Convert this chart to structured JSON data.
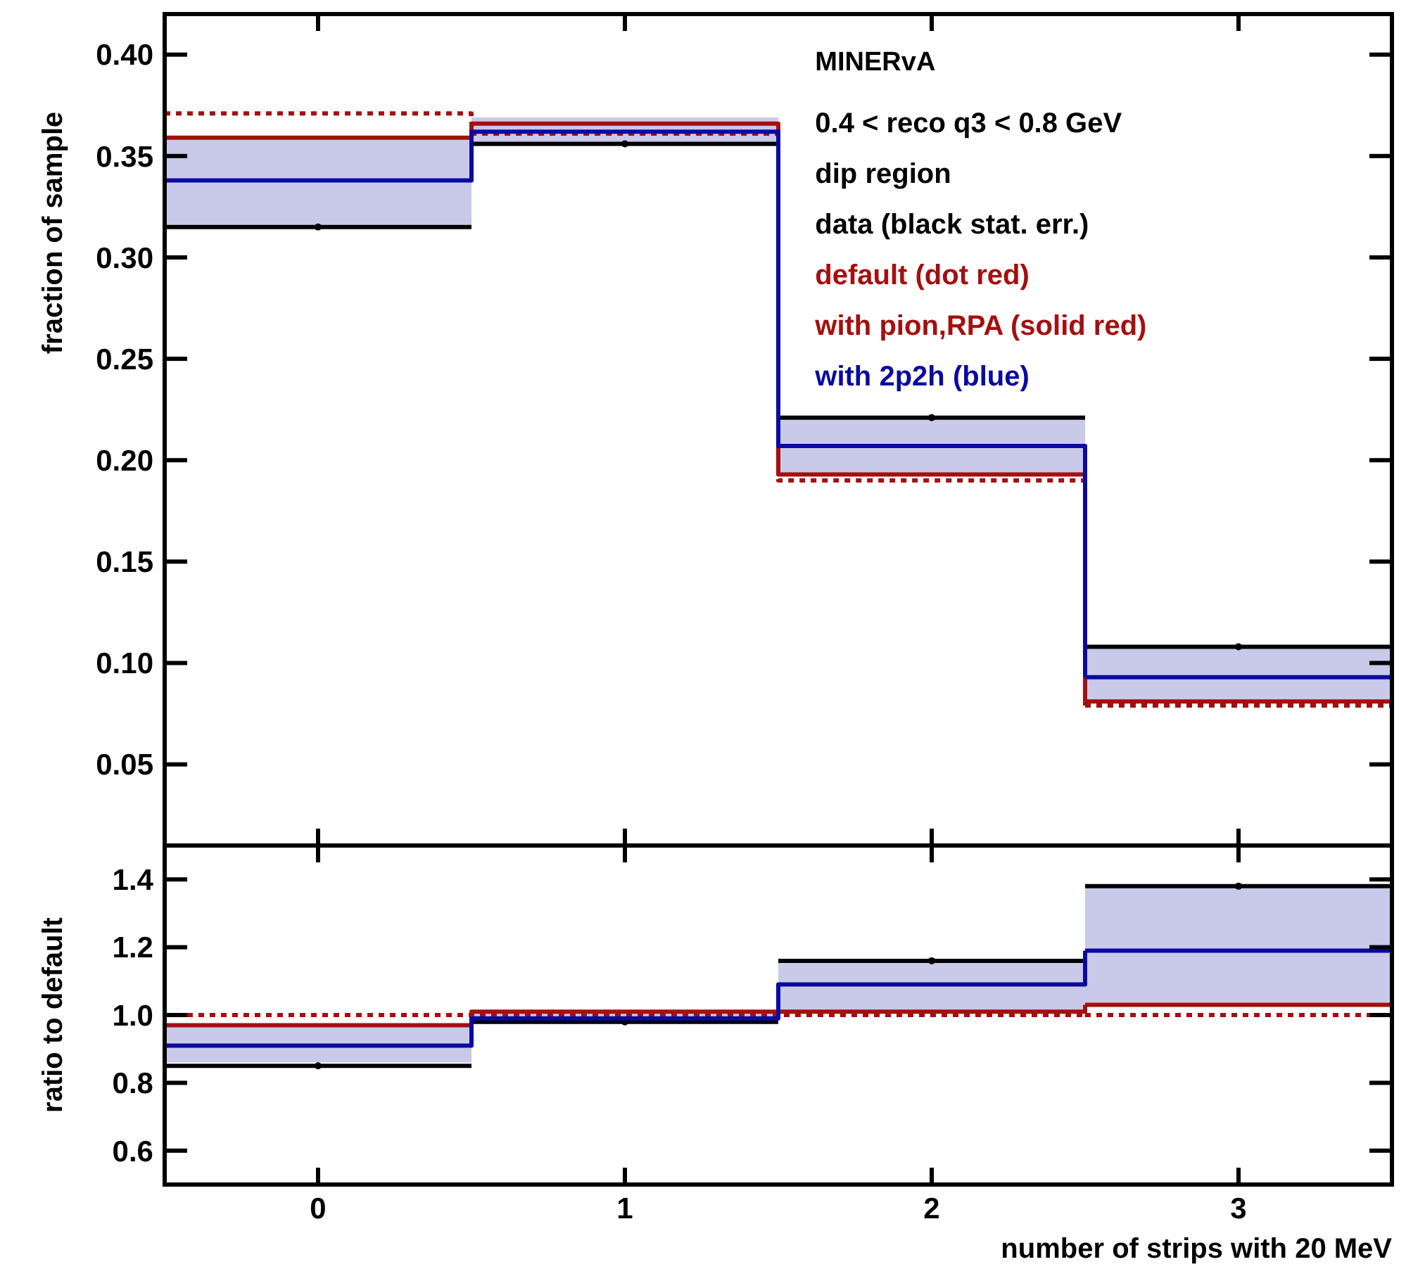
{
  "chart_data": [
    {
      "type": "step",
      "ylabel": "fraction of sample",
      "x": [
        -0.5,
        0.5,
        1.5,
        2.5
      ],
      "xlim": [
        -0.5,
        3.5
      ],
      "xticks": [
        0,
        1,
        2,
        3
      ],
      "ylim": [
        0.01,
        0.42
      ],
      "yticks": [
        0.05,
        {
          "value": 0.1,
          "label": "0.10"
        },
        0.15,
        {
          "value": 0.2,
          "label": "0.20"
        },
        0.25,
        {
          "value": 0.3,
          "label": "0.30"
        },
        0.35,
        {
          "value": 0.4,
          "label": "0.40"
        }
      ],
      "tick_labels": "y",
      "legend": "top right",
      "grid": false,
      "annotations": [
        "MINERvA",
        "0.4 < reco q3 < 0.8 GeV",
        "dip region"
      ],
      "series": [
        {
          "name": "data (black stat. err.)",
          "type": "scatter",
          "color": "#000000",
          "x": [
            0,
            1,
            2,
            3
          ],
          "values": [
            0.315,
            0.356,
            0.221,
            0.108
          ],
          "xerrors": [
            0.5,
            0.5,
            0.5,
            0.5
          ]
        },
        {
          "name": "default (dot red)",
          "color": "#a50f0f",
          "line_style": "dotted",
          "values": [
            0.371,
            0.361,
            0.19,
            0.079
          ]
        },
        {
          "name": "with pion,RPA (solid red)",
          "color": "#a50f0f",
          "line_style": "solid",
          "values": [
            0.359,
            0.366,
            0.193,
            0.081
          ]
        },
        {
          "name": "with 2p2h (blue)",
          "color": "#0a0aa0",
          "line_style": "solid",
          "values": [
            0.338,
            0.362,
            0.207,
            0.093
          ],
          "lower": [
            0.315,
            0.355,
            0.193,
            0.081
          ],
          "upper": [
            0.359,
            0.369,
            0.221,
            0.108
          ]
        }
      ]
    },
    {
      "type": "step",
      "ylabel": "ratio to default",
      "xlabel": "number of strips with 20 MeV",
      "x": [
        -0.5,
        0.5,
        1.5,
        2.5
      ],
      "xlim": [
        -0.5,
        3.5
      ],
      "xticks": [
        0,
        1,
        2,
        3
      ],
      "ylim": [
        0.5,
        1.5
      ],
      "yticks": [
        0.6,
        0.8,
        {
          "value": 1,
          "label": "1.0"
        },
        1.2,
        1.4
      ],
      "grid": false,
      "series": [
        {
          "type": "scatter",
          "color": "#000000",
          "x": [
            0,
            1,
            2,
            3
          ],
          "values": [
            0.85,
            0.98,
            1.16,
            1.38
          ],
          "xerrors": [
            0.5,
            0.5,
            0.5,
            0.5
          ]
        },
        {
          "color": "#a50f0f",
          "line_style": "dotted",
          "values": [
            1.0,
            1.0,
            1.0,
            1.0
          ]
        },
        {
          "color": "#a50f0f",
          "line_style": "solid",
          "values": [
            0.97,
            1.01,
            1.01,
            1.03
          ]
        },
        {
          "color": "#0a0aa0",
          "line_style": "solid",
          "values": [
            0.91,
            0.99,
            1.09,
            1.19
          ],
          "lower": [
            0.86,
            0.98,
            1.01,
            1.03
          ],
          "upper": [
            0.97,
            1.01,
            1.16,
            1.38
          ]
        }
      ]
    }
  ]
}
